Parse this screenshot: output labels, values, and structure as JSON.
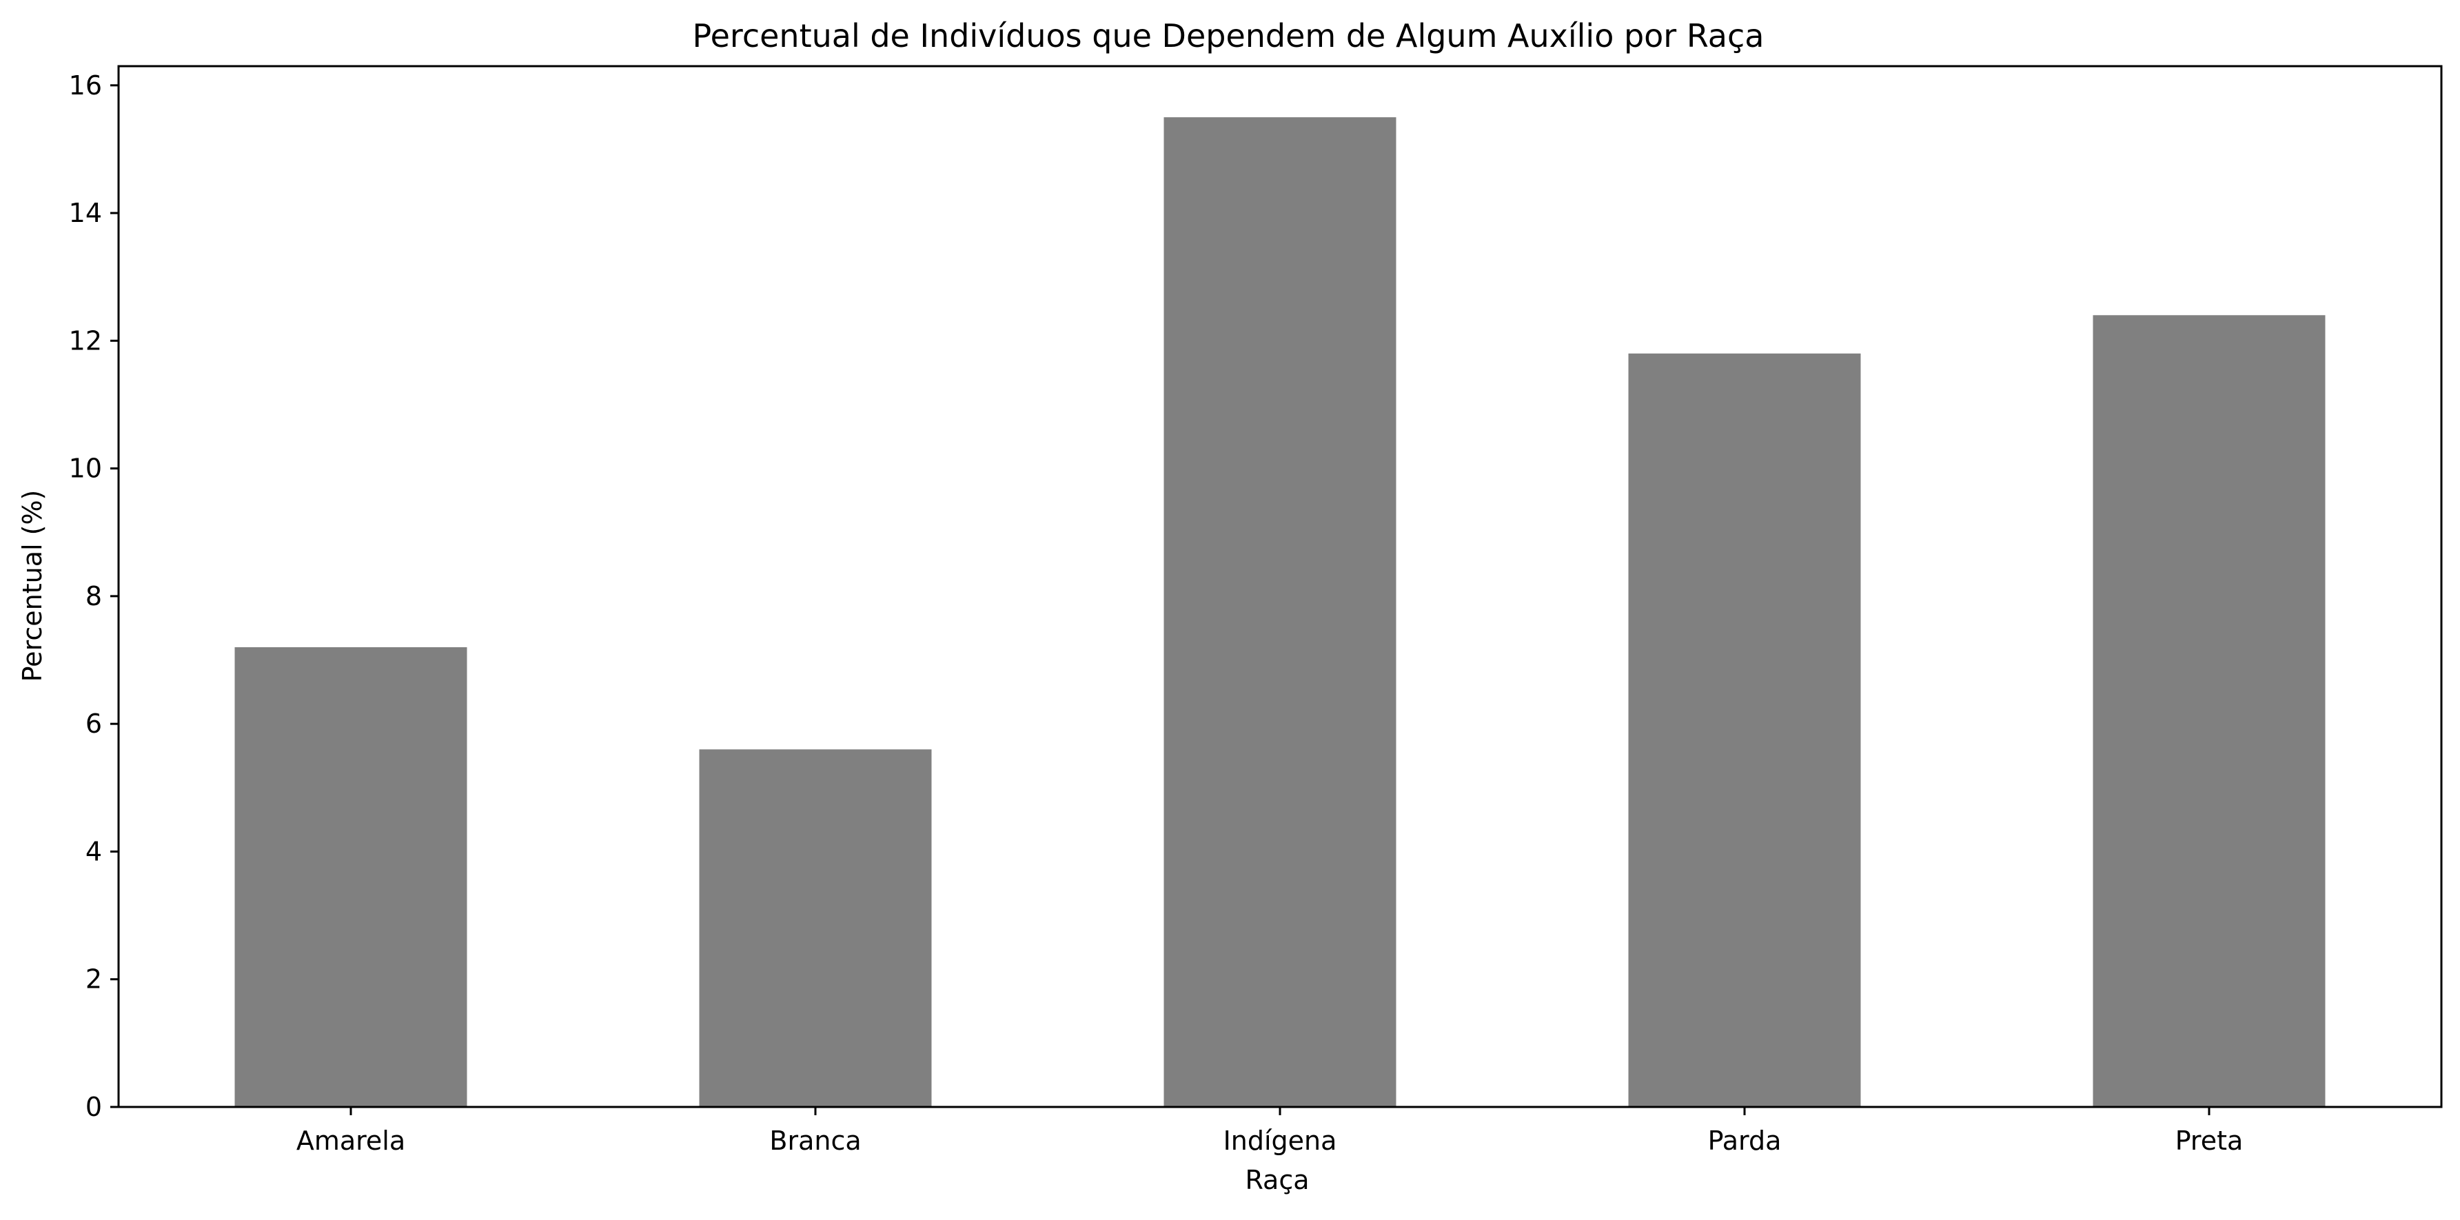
{
  "chart_data": {
    "type": "bar",
    "title": "Percentual de Indivíduos que Dependem de Algum Auxílio por Raça",
    "xlabel": "Raça",
    "ylabel": "Percentual (%)",
    "categories": [
      "Amarela",
      "Branca",
      "Indígena",
      "Parda",
      "Preta"
    ],
    "values": [
      7.2,
      5.6,
      15.5,
      11.8,
      12.4
    ],
    "ylim": [
      0,
      16.3
    ],
    "yticks": [
      0,
      2,
      4,
      6,
      8,
      10,
      12,
      14,
      16
    ],
    "grid": false,
    "legend": "none",
    "bar_color": "#808080",
    "axis_color": "#000000"
  }
}
